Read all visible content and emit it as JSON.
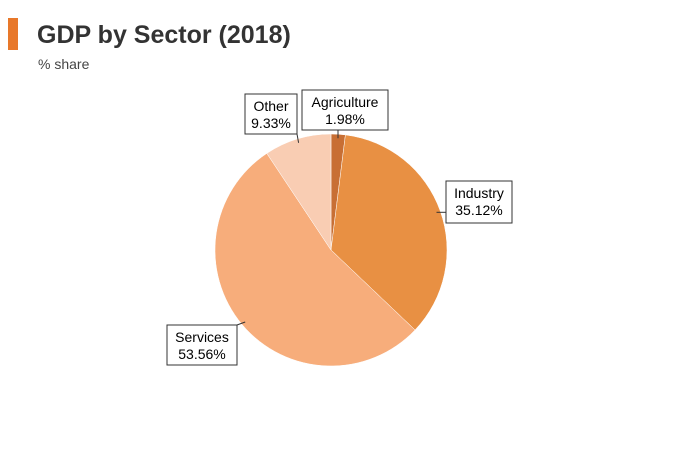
{
  "header": {
    "title": "GDP by Sector (2018)",
    "subtitle": "% share"
  },
  "colors": {
    "accent": "#e8782a",
    "agriculture": "#c86f34",
    "industry": "#e89043",
    "services": "#f7ad7b",
    "other": "#f9cdb3"
  },
  "chart_data": {
    "type": "pie",
    "title": "GDP by Sector (2018)",
    "subtitle": "% share",
    "slices": [
      {
        "name": "Agriculture",
        "value": 1.98,
        "label": "1.98%",
        "color": "#c86f34"
      },
      {
        "name": "Industry",
        "value": 35.12,
        "label": "35.12%",
        "color": "#e89043"
      },
      {
        "name": "Services",
        "value": 53.56,
        "label": "53.56%",
        "color": "#f7ad7b"
      },
      {
        "name": "Other",
        "value": 9.33,
        "label": "9.33%",
        "color": "#f9cdb3"
      }
    ]
  }
}
